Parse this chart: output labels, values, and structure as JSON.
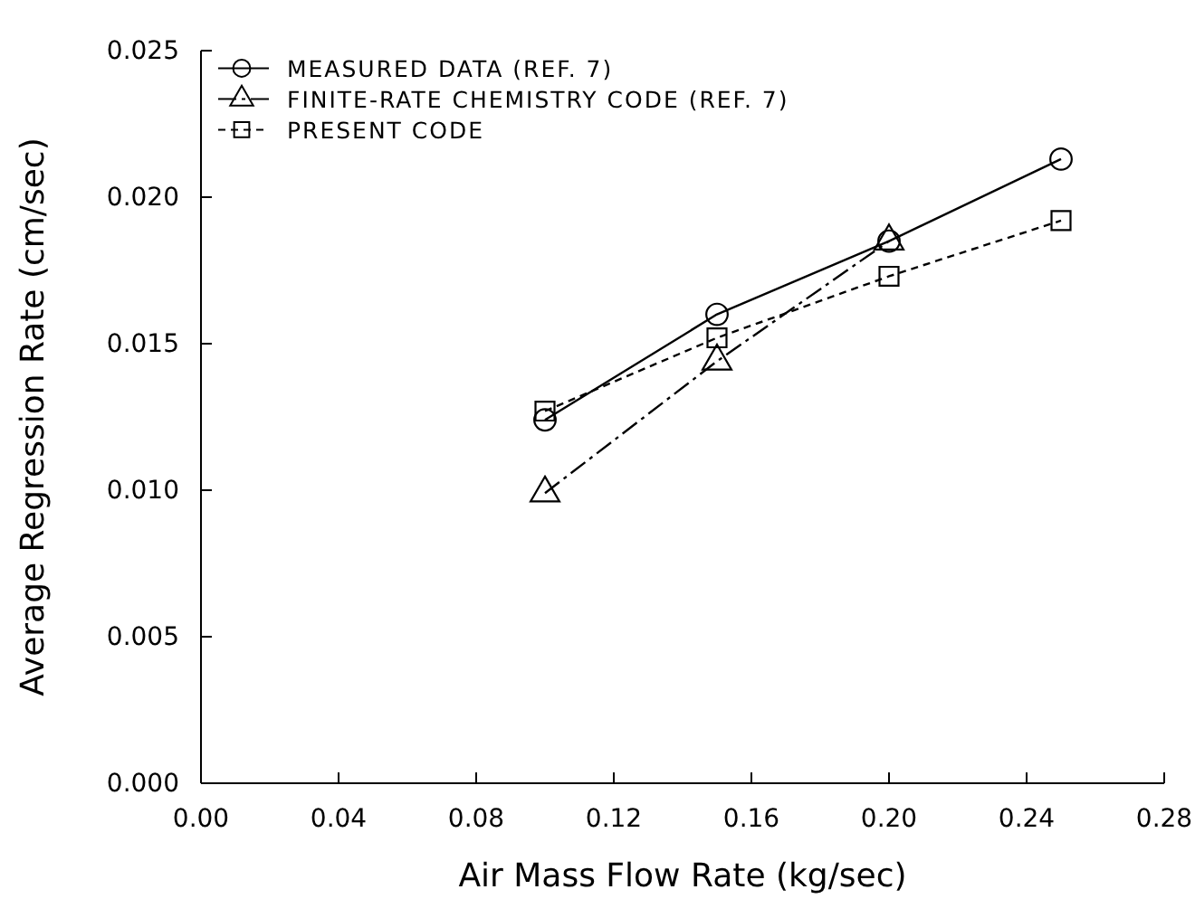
{
  "chart_data": {
    "type": "line",
    "xlabel": "Air Mass Flow Rate  (kg/sec)",
    "ylabel": "Average Regression Rate  (cm/sec)",
    "x": [
      0.1,
      0.15,
      0.2,
      0.25
    ],
    "xlim": [
      0,
      0.28
    ],
    "xticks": [
      {
        "value": 0,
        "label": "0.00"
      },
      {
        "value": 0.04,
        "label": "0.04"
      },
      {
        "value": 0.08,
        "label": "0.08"
      },
      {
        "value": 0.12,
        "label": "0.12"
      },
      {
        "value": 0.16,
        "label": "0.16"
      },
      {
        "value": 0.2,
        "label": "0.20"
      },
      {
        "value": 0.24,
        "label": "0.24"
      },
      {
        "value": 0.28,
        "label": "0.28"
      }
    ],
    "ylim": [
      0,
      0.025
    ],
    "yticks": [
      {
        "value": 0,
        "label": "0.000"
      },
      {
        "value": 0.005,
        "label": "0.005"
      },
      {
        "value": 0.01,
        "label": "0.010"
      },
      {
        "value": 0.015,
        "label": "0.015"
      },
      {
        "value": 0.02,
        "label": "0.020"
      },
      {
        "value": 0.025,
        "label": "0.025"
      }
    ],
    "legend": "top left",
    "grid": false,
    "series": [
      {
        "name": "MEASURED DATA (REF. 7)",
        "color": "#000000",
        "marker": "circle",
        "line_style": "solid",
        "values": [
          0.0124,
          0.016,
          0.0185,
          0.0213
        ]
      },
      {
        "name": "FINITE-RATE CHEMISTRY CODE (REF. 7)",
        "color": "#000000",
        "marker": "triangle",
        "line_style": "dashdot",
        "values": [
          0.0099,
          0.0144,
          0.0185,
          null
        ]
      },
      {
        "name": "PRESENT CODE",
        "color": "#000000",
        "marker": "square",
        "line_style": "dashed",
        "values": [
          0.0127,
          0.0152,
          0.0173,
          0.0192
        ]
      }
    ]
  }
}
